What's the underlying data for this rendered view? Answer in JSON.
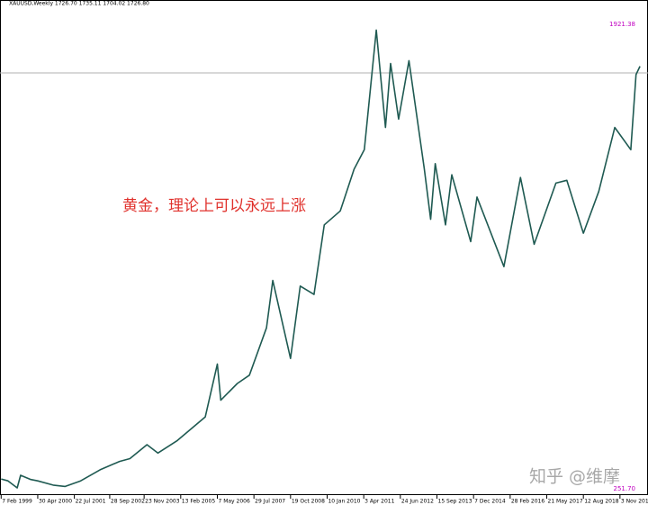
{
  "chart_data": {
    "type": "line",
    "header": "XAUUSD,Weekly 1726.70 1735.11 1704.02 1726.80",
    "annotation": "黄金，理论上可以永远上涨",
    "watermark": "知乎 @维摩",
    "color": "#1f5a52",
    "x": [
      "1999-02-07",
      "1999-05-02",
      "1999-08-22",
      "1999-10-03",
      "2000-02-06",
      "2000-04-30",
      "2000-11-05",
      "2001-04-01",
      "2001-10-07",
      "2002-06-02",
      "2003-01-26",
      "2003-06-01",
      "2003-12-28",
      "2004-05-09",
      "2005-01-02",
      "2005-12-11",
      "2006-05-07",
      "2006-06-18",
      "2007-01-07",
      "2007-06-03",
      "2007-12-30",
      "2008-03-16",
      "2008-10-19",
      "2009-02-15",
      "2009-08-02",
      "2009-12-06",
      "2010-06-20",
      "2010-12-05",
      "2011-04-10",
      "2011-09-04",
      "2011-12-25",
      "2012-02-26",
      "2012-06-03",
      "2012-10-07",
      "2013-04-14",
      "2013-06-30",
      "2013-08-25",
      "2013-12-29",
      "2014-03-16",
      "2014-11-02",
      "2015-01-18",
      "2015-12-13",
      "2016-07-03",
      "2016-12-18",
      "2017-09-10",
      "2018-01-21",
      "2018-08-12",
      "2019-02-17",
      "2019-09-01",
      "2020-03-15",
      "2020-05-17",
      "2020-07-05"
    ],
    "values": [
      287,
      280,
      255,
      300,
      285,
      280,
      265,
      260,
      280,
      320,
      350,
      360,
      410,
      380,
      425,
      510,
      700,
      570,
      630,
      660,
      830,
      1000,
      720,
      980,
      950,
      1200,
      1250,
      1400,
      1470,
      1900,
      1550,
      1780,
      1580,
      1790,
      1400,
      1220,
      1420,
      1200,
      1380,
      1140,
      1300,
      1050,
      1370,
      1130,
      1350,
      1360,
      1170,
      1320,
      1550,
      1470,
      1740,
      1770
    ],
    "xlim": [
      "1999-01-24",
      "2020-10-11"
    ],
    "xticks": [
      {
        "value": "1999-02-07",
        "label": "7 Feb 1999"
      },
      {
        "value": "2000-04-30",
        "label": "30 Apr 2000"
      },
      {
        "value": "2001-07-22",
        "label": "22 Jul 2001"
      },
      {
        "value": "2002-09-28",
        "label": "28 Sep 2002"
      },
      {
        "value": "2003-11-23",
        "label": "23 Nov 2003"
      },
      {
        "value": "2005-02-13",
        "label": "13 Feb 2005"
      },
      {
        "value": "2006-05-07",
        "label": "7 May 2006"
      },
      {
        "value": "2007-07-29",
        "label": "29 Jul 2007"
      },
      {
        "value": "2008-10-19",
        "label": "19 Oct 2008"
      },
      {
        "value": "2010-01-10",
        "label": "10 Jan 2010"
      },
      {
        "value": "2011-04-03",
        "label": "3 Apr 2011"
      },
      {
        "value": "2012-06-24",
        "label": "24 Jun 2012"
      },
      {
        "value": "2013-09-15",
        "label": "15 Sep 2013"
      },
      {
        "value": "2014-12-07",
        "label": "7 Dec 2014"
      },
      {
        "value": "2016-02-28",
        "label": "28 Feb 2016"
      },
      {
        "value": "2017-05-21",
        "label": "21 May 2017"
      },
      {
        "value": "2018-08-12",
        "label": "12 Aug 2018"
      },
      {
        "value": "2019-11-03",
        "label": "3 Nov 2019"
      }
    ],
    "ylim": [
      229,
      2008
    ],
    "yticks": [
      1921.38,
      {
        "value": 251.7,
        "label": "251.70"
      }
    ],
    "price_line": 1746
  }
}
